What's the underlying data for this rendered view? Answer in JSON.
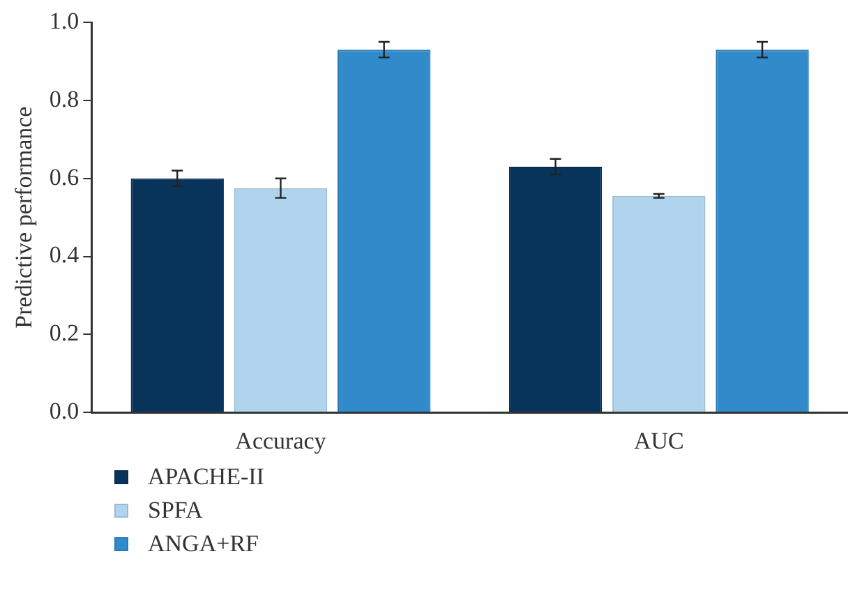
{
  "chart_data": {
    "type": "bar",
    "ylabel": "Predictive performance",
    "categories": [
      "Accuracy",
      "AUC"
    ],
    "series": [
      {
        "name": "APACHE-II",
        "color": "#08345c",
        "values": [
          0.6,
          0.63
        ],
        "errors": [
          0.02,
          0.02
        ]
      },
      {
        "name": "SPFA",
        "color": "#b0d4ee",
        "values": [
          0.575,
          0.555
        ],
        "errors": [
          0.025,
          0.005
        ]
      },
      {
        "name": "ANGA+RF",
        "color": "#318bca",
        "values": [
          0.93,
          0.93
        ],
        "errors": [
          0.02,
          0.02
        ]
      }
    ],
    "ylim": [
      0,
      1
    ],
    "yticks": [
      {
        "value": 0,
        "label": "0.0"
      },
      {
        "value": 0.2,
        "label": "0.2"
      },
      {
        "value": 0.4,
        "label": "0.4"
      },
      {
        "value": 0.6,
        "label": "0.6"
      },
      {
        "value": 0.8,
        "label": "0.8"
      },
      {
        "value": 1,
        "label": "1.0"
      }
    ],
    "grid": false,
    "legend": "bottom left"
  }
}
